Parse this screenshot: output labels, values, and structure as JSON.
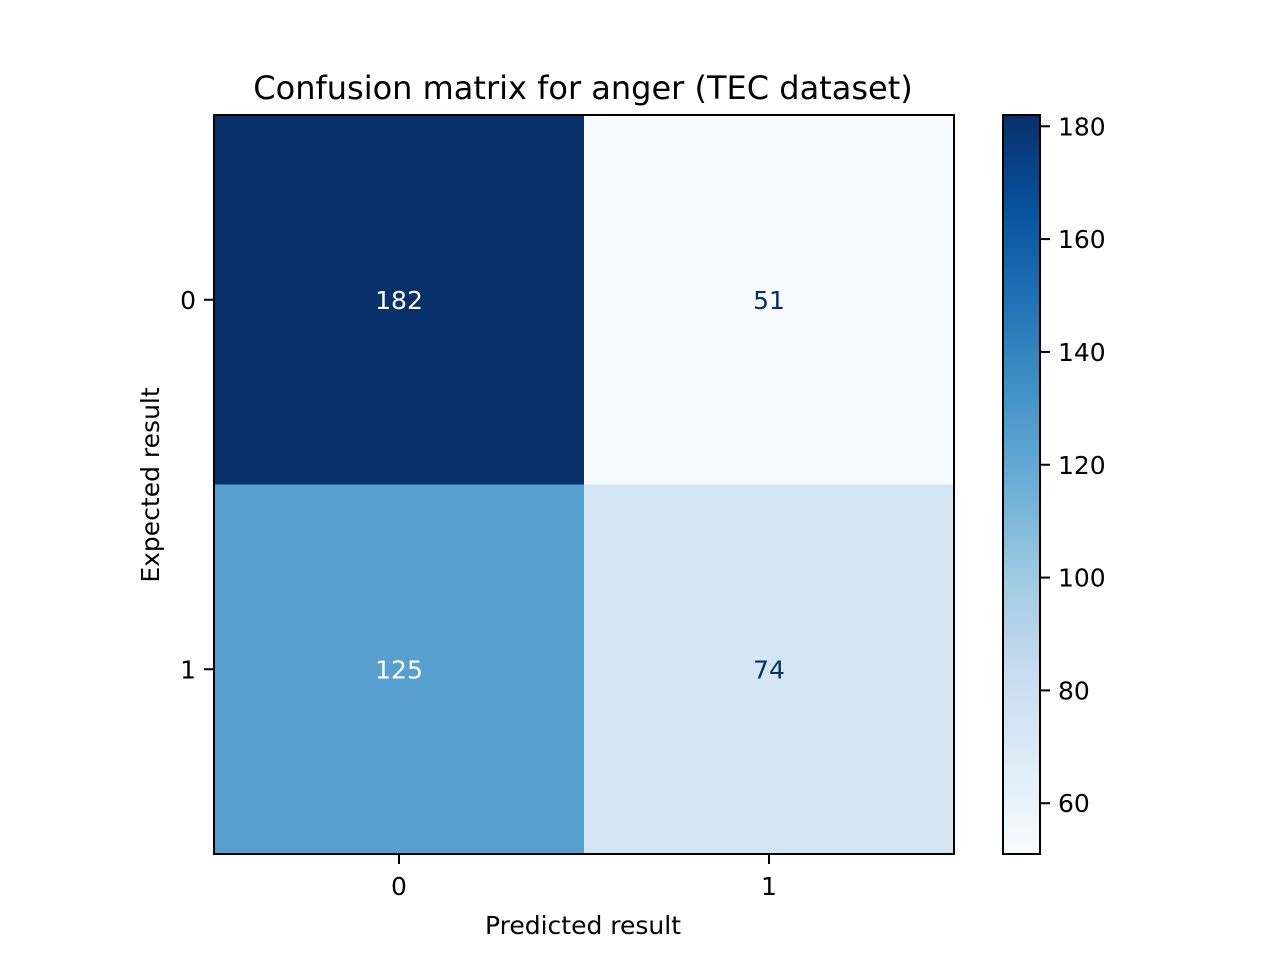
{
  "chart_data": {
    "type": "heatmap",
    "title": "Confusion matrix for anger (TEC dataset)",
    "xlabel": "Predicted result",
    "ylabel": "Expected result",
    "x_categories": [
      "0",
      "1"
    ],
    "y_categories": [
      "0",
      "1"
    ],
    "values": [
      [
        182,
        51
      ],
      [
        125,
        74
      ]
    ],
    "colormap": "Blues",
    "colorbar": {
      "range": [
        51,
        182
      ],
      "ticks": [
        60,
        80,
        100,
        120,
        140,
        160,
        180
      ]
    },
    "grid": false,
    "legend": "none"
  }
}
